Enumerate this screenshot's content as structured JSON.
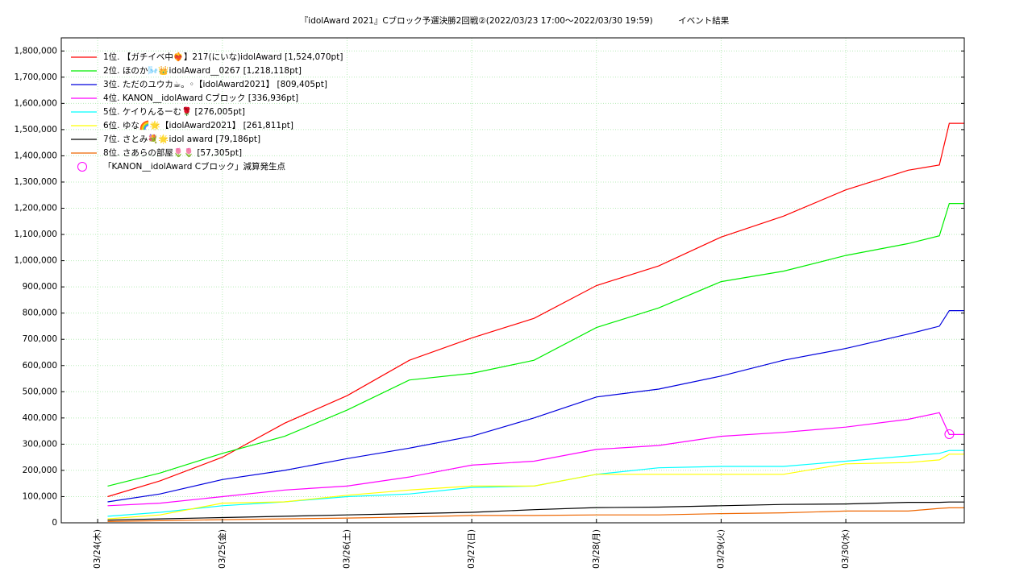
{
  "chart_data": {
    "type": "line",
    "title": "『idolAward 2021』Cブロック予選決勝2回戦②(2022/03/23 17:00～2022/03/30 19:59)　　　イベント結果",
    "x": [
      1.08,
      1.5,
      2.0,
      2.5,
      3.0,
      3.5,
      4.0,
      4.5,
      5.0,
      5.5,
      6.0,
      6.5,
      7.0,
      7.5,
      7.75,
      7.83,
      7.95
    ],
    "xlim": [
      0.708,
      7.95
    ],
    "xticks": [
      {
        "value": 1,
        "label": "03/24(木)"
      },
      {
        "value": 2,
        "label": "03/25(金)"
      },
      {
        "value": 3,
        "label": "03/26(土)"
      },
      {
        "value": 4,
        "label": "03/27(日)"
      },
      {
        "value": 5,
        "label": "03/28(月)"
      },
      {
        "value": 6,
        "label": "03/29(火)"
      },
      {
        "value": 7,
        "label": "03/30(水)"
      }
    ],
    "ylim": [
      0,
      1850000
    ],
    "yticks": [
      0,
      {
        "value": 100000,
        "label": "100,000"
      },
      {
        "value": 200000,
        "label": "200,000"
      },
      {
        "value": 300000,
        "label": "300,000"
      },
      {
        "value": 400000,
        "label": "400,000"
      },
      {
        "value": 500000,
        "label": "500,000"
      },
      {
        "value": 600000,
        "label": "600,000"
      },
      {
        "value": 700000,
        "label": "700,000"
      },
      {
        "value": 800000,
        "label": "800,000"
      },
      {
        "value": 900000,
        "label": "900,000"
      },
      {
        "value": 1000000,
        "label": "1,000,000"
      },
      {
        "value": 1100000,
        "label": "1,100,000"
      },
      {
        "value": 1200000,
        "label": "1,200,000"
      },
      {
        "value": 1300000,
        "label": "1,300,000"
      },
      {
        "value": 1400000,
        "label": "1,400,000"
      },
      {
        "value": 1500000,
        "label": "1,500,000"
      },
      {
        "value": 1600000,
        "label": "1,600,000"
      },
      {
        "value": 1700000,
        "label": "1,700,000"
      },
      {
        "value": 1800000,
        "label": "1,800,000"
      }
    ],
    "grid": true,
    "legend": "top-left",
    "series": [
      {
        "name": "1位. 【ガチイベ中❤️‍🔥】217(にいな)idolAward [1,524,070pt]",
        "color": "#ff0000",
        "values": [
          100000,
          160000,
          250000,
          380000,
          485000,
          620000,
          705000,
          780000,
          905000,
          980000,
          1090000,
          1170000,
          1270000,
          1345000,
          1365000,
          1524070,
          1524070
        ]
      },
      {
        "name": "2位. ほのか🌬️👑idolAward__0267 [1,218,118pt]",
        "color": "#00ee00",
        "values": [
          140000,
          190000,
          265000,
          330000,
          430000,
          545000,
          570000,
          620000,
          745000,
          820000,
          920000,
          960000,
          1020000,
          1065000,
          1095000,
          1218118,
          1218118
        ]
      },
      {
        "name": "3位. ただのユウカ☕。◦【idolAward2021】 [809,405pt]",
        "color": "#0000dd",
        "values": [
          80000,
          110000,
          165000,
          200000,
          245000,
          285000,
          330000,
          400000,
          480000,
          510000,
          560000,
          620000,
          665000,
          720000,
          750000,
          809405,
          809405
        ]
      },
      {
        "name": "4位. KANON__idolAward Cブロック [336,936pt]",
        "color": "#ff00ff",
        "values": [
          65000,
          75000,
          100000,
          125000,
          140000,
          175000,
          220000,
          235000,
          280000,
          295000,
          330000,
          345000,
          365000,
          395000,
          420000,
          336936,
          336936
        ]
      },
      {
        "name": "5位. ケイりんるーむ🌹 [276,005pt]",
        "color": "#00ffff",
        "values": [
          25000,
          40000,
          65000,
          80000,
          100000,
          110000,
          135000,
          140000,
          185000,
          210000,
          215000,
          215000,
          235000,
          255000,
          265000,
          276005,
          276005
        ]
      },
      {
        "name": "6位. ゆな🌈🌟【idolAward2021】 [261,811pt]",
        "color": "#ffff00",
        "values": [
          15000,
          30000,
          75000,
          80000,
          105000,
          125000,
          140000,
          140000,
          185000,
          185000,
          185000,
          185000,
          225000,
          230000,
          240000,
          261811,
          261811
        ]
      },
      {
        "name": "7位. さとみ💐🌟idol award [79,186pt]",
        "color": "#000000",
        "values": [
          10000,
          15000,
          20000,
          25000,
          30000,
          35000,
          40000,
          50000,
          58000,
          60000,
          65000,
          70000,
          72000,
          78000,
          78000,
          79186,
          79186
        ]
      },
      {
        "name": "8位. さあらの部屋🌷🌷 [57,305pt]",
        "color": "#ee6600",
        "values": [
          5000,
          8000,
          12000,
          15000,
          18000,
          22000,
          28000,
          28000,
          30000,
          30000,
          35000,
          38000,
          45000,
          45000,
          55000,
          57305,
          57305
        ]
      }
    ],
    "annotation": {
      "label": "「KANON__idolAward Cブロック」減算発生点",
      "x": 7.83,
      "y": 338000,
      "color": "#ff00ff"
    }
  }
}
